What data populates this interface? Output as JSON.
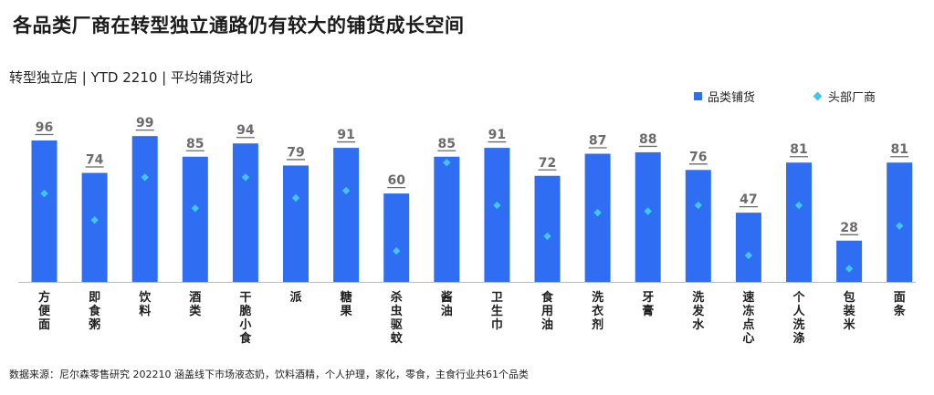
{
  "title": "各品类厂商在转型独立通路仍有较大的铺货成长空间",
  "subtitle": "转型独立店 | YTD 2210 | 平均铺货对比",
  "source": "数据来源：尼尔森零售研究 202210 涵盖线下市场液态奶，饮料酒精，个人护理，家化，零食，主食行业共61个品类",
  "colors": {
    "bar": "#2f6ef2",
    "marker": "#41c6f0",
    "label": "#6b6b6b"
  },
  "chart_data": {
    "type": "bar",
    "title": "各品类厂商在转型独立通路仍有较大的铺货成长空间",
    "xlabel": "",
    "ylabel": "",
    "ylim": [
      0,
      100
    ],
    "grid": false,
    "legend": "top-right",
    "categories": [
      "方便面",
      "即食粥",
      "饮料",
      "酒类",
      "干脆小食",
      "派",
      "糖果",
      "杀虫驱蚊",
      "酱油",
      "卫生巾",
      "食用油",
      "洗衣剂",
      "牙膏",
      "洗发水",
      "速冻点心",
      "个人洗涤",
      "包装米",
      "面条"
    ],
    "series": [
      {
        "name": "品类铺货",
        "type": "bar",
        "values": [
          96,
          74,
          99,
          85,
          94,
          79,
          91,
          60,
          85,
          91,
          72,
          87,
          88,
          76,
          47,
          81,
          28,
          81
        ]
      },
      {
        "name": "头部厂商",
        "type": "scatter",
        "values": [
          60,
          42,
          71,
          50,
          71,
          57,
          62,
          21,
          81,
          52,
          31,
          47,
          48,
          52,
          18,
          52,
          9,
          38
        ]
      }
    ]
  }
}
